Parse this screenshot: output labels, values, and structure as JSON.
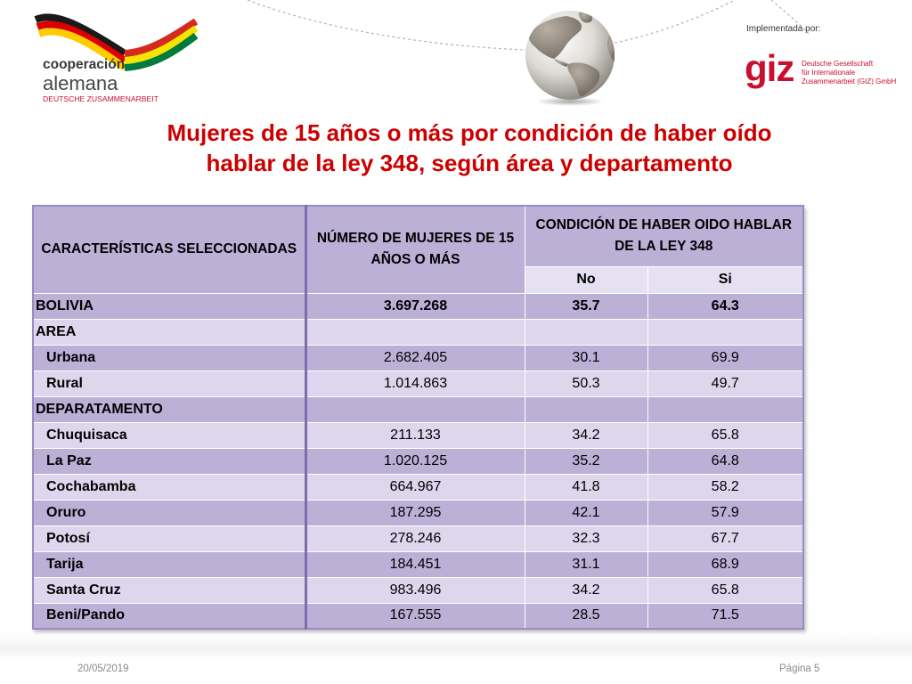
{
  "logo_left": {
    "line1": "cooperación",
    "line2": "alemana",
    "line3": "DEUTSCHE ZUSAMMENARBEIT"
  },
  "implementer": {
    "label": "Implementada por:",
    "logo": "giz",
    "name_lines": [
      "Deutsche Gesellschaft",
      "für Internationale",
      "Zusammenarbeit (GIZ) GmbH"
    ]
  },
  "title": {
    "line1": "Mujeres de 15 años o más por condición de haber oído",
    "line2": "hablar de la ley 348, según área y departamento"
  },
  "table": {
    "headers": {
      "characteristics": "CARACTERÍSTICAS SELECCIONADAS",
      "count": "NÚMERO DE MUJERES DE 15 AÑOS O MÁS",
      "condition": "CONDICIÓN DE HABER OIDO HABLAR DE LA LEY 348",
      "no": "No",
      "si": "Si"
    },
    "rows": [
      {
        "label": "BOLIVIA",
        "count": "3.697.268",
        "no": "35.7",
        "si": "64.3"
      },
      {
        "label": "AREA"
      },
      {
        "label": "Urbana",
        "count": "2.682.405",
        "no": "30.1",
        "si": "69.9"
      },
      {
        "label": "Rural",
        "count": "1.014.863",
        "no": "50.3",
        "si": "49.7"
      },
      {
        "label": "DEPARATAMENTO"
      },
      {
        "label": "Chuquisaca",
        "count": "211.133",
        "no": "34.2",
        "si": "65.8"
      },
      {
        "label": "La Paz",
        "count": "1.020.125",
        "no": "35.2",
        "si": "64.8"
      },
      {
        "label": "Cochabamba",
        "count": "664.967",
        "no": "41.8",
        "si": "58.2"
      },
      {
        "label": "Oruro",
        "count": "187.295",
        "no": "42.1",
        "si": "57.9"
      },
      {
        "label": "Potosí",
        "count": "278.246",
        "no": "32.3",
        "si": "67.7"
      },
      {
        "label": "Tarija",
        "count": "184.451",
        "no": "31.1",
        "si": "68.9"
      },
      {
        "label": "Santa Cruz",
        "count": "983.496",
        "no": "34.2",
        "si": "65.8"
      },
      {
        "label": "Beni/Pando",
        "count": "167.555",
        "no": "28.5",
        "si": "71.5"
      }
    ]
  },
  "footer": {
    "date": "20/05/2019",
    "page": "Página 5"
  },
  "colors": {
    "title": "#cc0000",
    "brand_red": "#c8102e",
    "row_dark": "#bcb0d7",
    "row_light": "#ddd6ed",
    "header_light": "#e6e1f2",
    "column_rule": "#7e6cae",
    "table_edge": "#9a8bc6",
    "footer_text": "#8a8a8a"
  }
}
